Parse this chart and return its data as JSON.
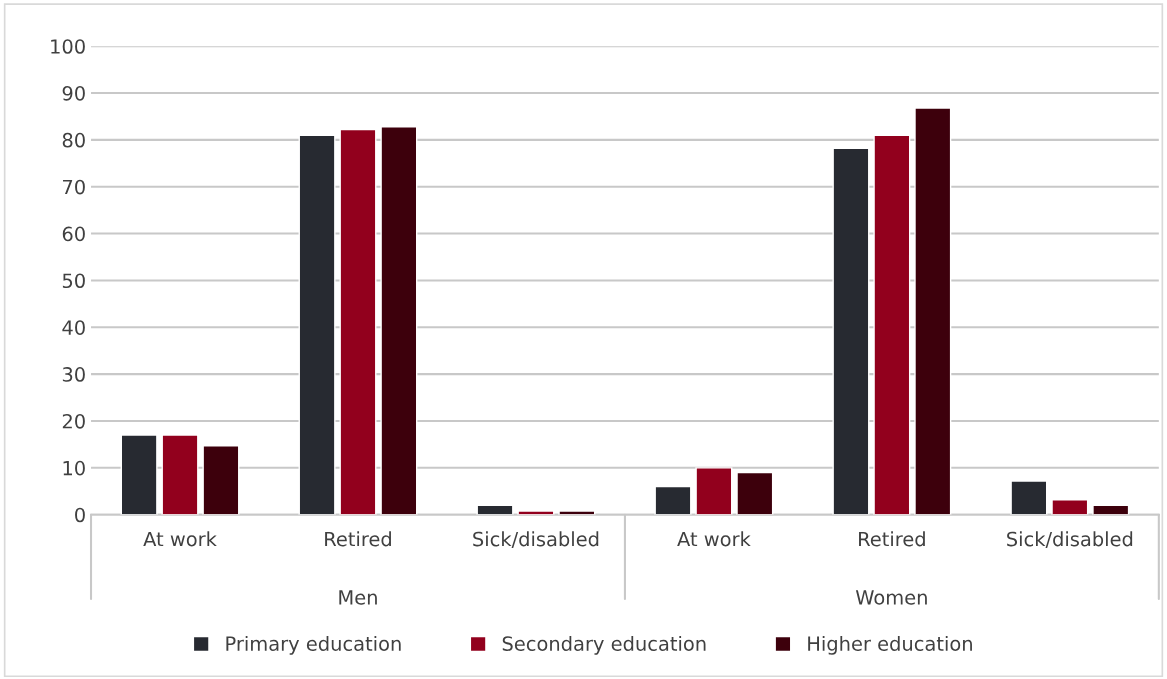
{
  "chart_data": {
    "type": "bar",
    "categories": [
      "At work",
      "Retired",
      "Sick/disabled",
      "At work",
      "Retired",
      "Sick/disabled"
    ],
    "series": [
      {
        "name": "Primary education",
        "color": "#272a31",
        "values": [
          17,
          81,
          2,
          6,
          78.2,
          7.2
        ]
      },
      {
        "name": "Secondary education",
        "color": "#92001d",
        "values": [
          17,
          82.2,
          0.8,
          10,
          81,
          3.2
        ]
      },
      {
        "name": "Higher education",
        "color": "#3d000c",
        "values": [
          14.7,
          82.8,
          0.8,
          9,
          86.8,
          2
        ]
      }
    ],
    "annotations": [
      "Men",
      "Women"
    ],
    "ylim": [
      0,
      100
    ],
    "yticks": [
      0,
      10,
      20,
      30,
      40,
      50,
      60,
      70,
      80,
      90,
      100
    ],
    "grid": "y",
    "legend": "bottom"
  }
}
